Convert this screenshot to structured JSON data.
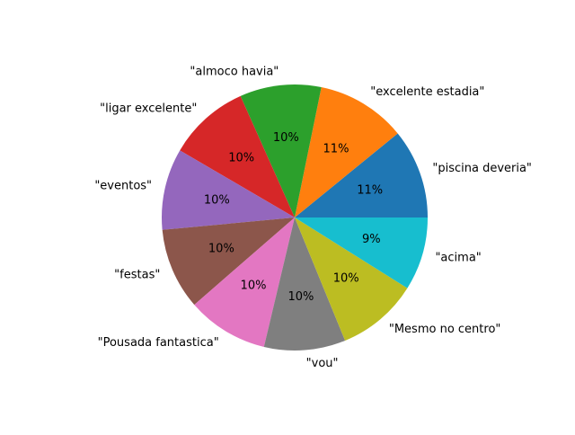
{
  "chart_data": {
    "type": "pie",
    "title": "",
    "labels": [
      "\"piscina deveria\"",
      "\"excelente estadia\"",
      "\"almoco havia\"",
      "\"ligar excelente\"",
      "\"eventos\"",
      "\"festas\"",
      "\"Pousada fantastica\"",
      "\"vou\"",
      "\"Mesmo no centro\"",
      "\"acima\""
    ],
    "values": [
      11,
      11,
      10,
      10,
      10,
      10,
      10,
      10,
      10,
      9
    ],
    "percent_labels": [
      "11%",
      "11%",
      "10%",
      "10%",
      "10%",
      "10%",
      "10%",
      "10%",
      "10%",
      "9%"
    ],
    "colors": [
      "#1f77b4",
      "#ff7f0e",
      "#2ca02c",
      "#d62728",
      "#9467bd",
      "#8c564b",
      "#e377c2",
      "#7f7f7f",
      "#bcbd22",
      "#17becf"
    ],
    "start_angle_deg": 0,
    "direction": "counterclockwise",
    "legend": "none"
  }
}
